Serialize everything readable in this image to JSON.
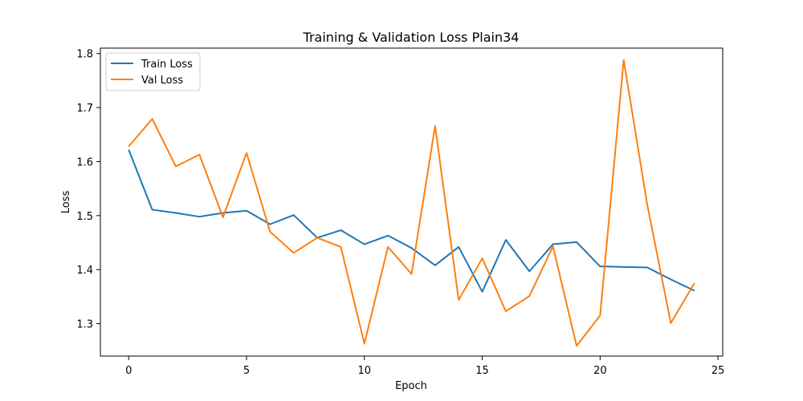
{
  "chart_data": {
    "type": "line",
    "title": "Training & Validation Loss Plain34",
    "xlabel": "Epoch",
    "ylabel": "Loss",
    "xlim": [
      -1.2,
      25.2
    ],
    "ylim": [
      1.24,
      1.81
    ],
    "xticks": [
      0,
      5,
      10,
      15,
      20,
      25
    ],
    "yticks": [
      1.3,
      1.4,
      1.5,
      1.6,
      1.7,
      1.8
    ],
    "xtick_labels": [
      "0",
      "5",
      "10",
      "15",
      "20",
      "25"
    ],
    "ytick_labels": [
      "1.3",
      "1.4",
      "1.5",
      "1.6",
      "1.7",
      "1.8"
    ],
    "grid": false,
    "legend_position": "top-left",
    "x": [
      0,
      1,
      2,
      3,
      4,
      5,
      6,
      7,
      8,
      9,
      10,
      11,
      12,
      13,
      14,
      15,
      16,
      17,
      18,
      19,
      20,
      21,
      22,
      23,
      24
    ],
    "series": [
      {
        "name": "Train Loss",
        "color": "#1f77b4",
        "values": [
          1.622,
          1.511,
          1.505,
          1.498,
          1.505,
          1.509,
          1.484,
          1.501,
          1.459,
          1.473,
          1.447,
          1.463,
          1.44,
          1.408,
          1.442,
          1.359,
          1.455,
          1.397,
          1.447,
          1.451,
          1.406,
          1.405,
          1.404,
          1.382,
          1.361
        ]
      },
      {
        "name": "Val Loss",
        "color": "#ff7f0e",
        "values": [
          1.628,
          1.679,
          1.591,
          1.613,
          1.497,
          1.616,
          1.47,
          1.431,
          1.459,
          1.442,
          1.263,
          1.442,
          1.392,
          1.666,
          1.344,
          1.421,
          1.323,
          1.351,
          1.443,
          1.259,
          1.315,
          1.788,
          1.52,
          1.301,
          1.375
        ]
      }
    ]
  }
}
